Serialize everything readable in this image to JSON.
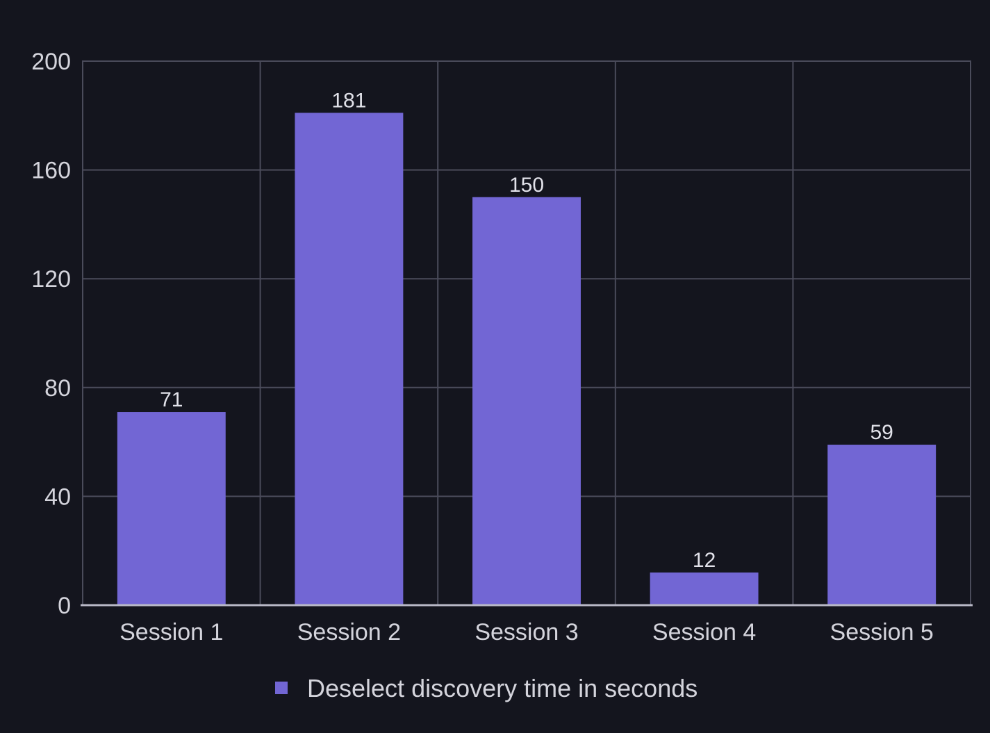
{
  "chart_data": {
    "type": "bar",
    "title": "",
    "xlabel": "",
    "ylabel": "",
    "categories": [
      "Session 1",
      "Session 2",
      "Session 3",
      "Session 4",
      "Session 5"
    ],
    "series": [
      {
        "name": "Deselect discovery time in seconds",
        "values": [
          71,
          181,
          150,
          12,
          59
        ],
        "color": "#7266d4"
      }
    ],
    "ylim": [
      0,
      200
    ],
    "yticks": [
      0,
      40,
      80,
      120,
      160,
      200
    ],
    "grid": true,
    "legend_position": "bottom",
    "data_labels": true
  },
  "colors": {
    "background": "#14151e",
    "grid": "#4a4b5a",
    "axis": "#b8b8c6",
    "text": "#d4d4dc"
  }
}
